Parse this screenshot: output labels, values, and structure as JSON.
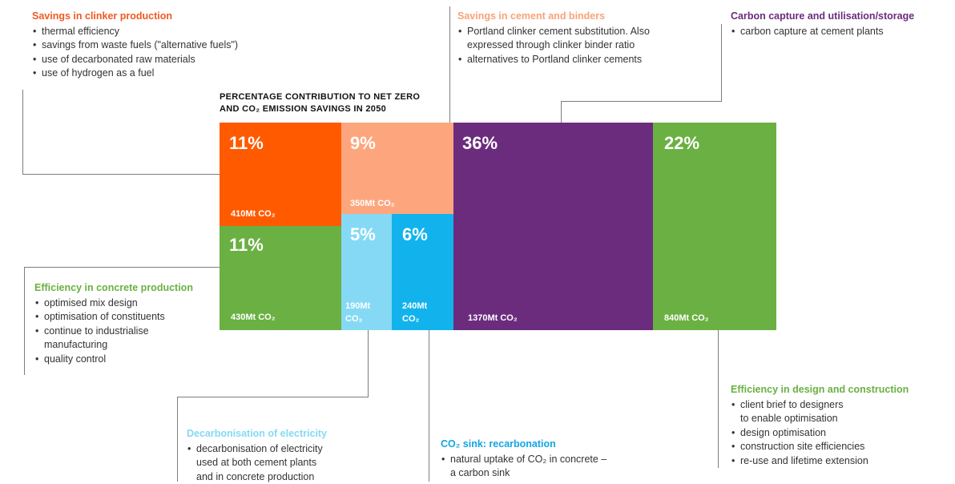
{
  "chart_title_line1": "PERCENTAGE CONTRIBUTION TO NET ZERO",
  "chart_title_line2": "AND CO₂ EMISSION SAVINGS IN 2050",
  "colors": {
    "clinker": "#ff5a00",
    "cement": "#fda67e",
    "ccus": "#6b2c7e",
    "design": "#6ab042",
    "concrete": "#6ab042",
    "electricity": "#85d9f5",
    "recarbonation": "#12b3ec"
  },
  "blocks": {
    "clinker": {
      "pct": "11%",
      "value": "410Mt CO₂"
    },
    "cement": {
      "pct": "9%",
      "value": "350Mt CO₂"
    },
    "ccus": {
      "pct": "36%",
      "value": "1370Mt CO₂"
    },
    "design": {
      "pct": "22%",
      "value": "840Mt CO₂"
    },
    "concrete": {
      "pct": "11%",
      "value": "430Mt CO₂"
    },
    "electricity": {
      "pct": "5%",
      "value_line1": "190Mt",
      "value_line2": "CO₂"
    },
    "recarbonation": {
      "pct": "6%",
      "value_line1": "240Mt",
      "value_line2": "CO₂"
    }
  },
  "labels": {
    "clinker": {
      "title": "Savings in clinker production",
      "items": [
        "thermal efficiency",
        "savings from waste fuels (\"alternative fuels\")",
        "use of decarbonated raw materials",
        "use of hydrogen as a fuel"
      ]
    },
    "cement": {
      "title": "Savings in cement and binders",
      "items": [
        "Portland clinker cement substitution. Also",
        "expressed through clinker binder ratio",
        "alternatives to Portland clinker cements"
      ]
    },
    "ccus": {
      "title": "Carbon capture and utilisation/storage",
      "items": [
        "carbon capture at cement plants"
      ]
    },
    "concrete": {
      "title": "Efficiency in concrete production",
      "items": [
        "optimised mix design",
        "optimisation of constituents",
        "continue to industrialise",
        "manufacturing",
        "quality control"
      ]
    },
    "electricity": {
      "title": "Decarbonisation of electricity",
      "items": [
        "decarbonisation of electricity",
        "used at both cement plants",
        "and in concrete production"
      ]
    },
    "recarbonation": {
      "title": "CO₂ sink: recarbonation",
      "items": [
        "natural uptake of CO₂ in concrete –",
        "a carbon sink"
      ]
    },
    "design": {
      "title": "Efficiency in design and construction",
      "items": [
        "client brief to designers",
        "to enable optimisation",
        "design optimisation",
        "construction site efficiencies",
        "re-use and lifetime extension"
      ]
    }
  }
}
